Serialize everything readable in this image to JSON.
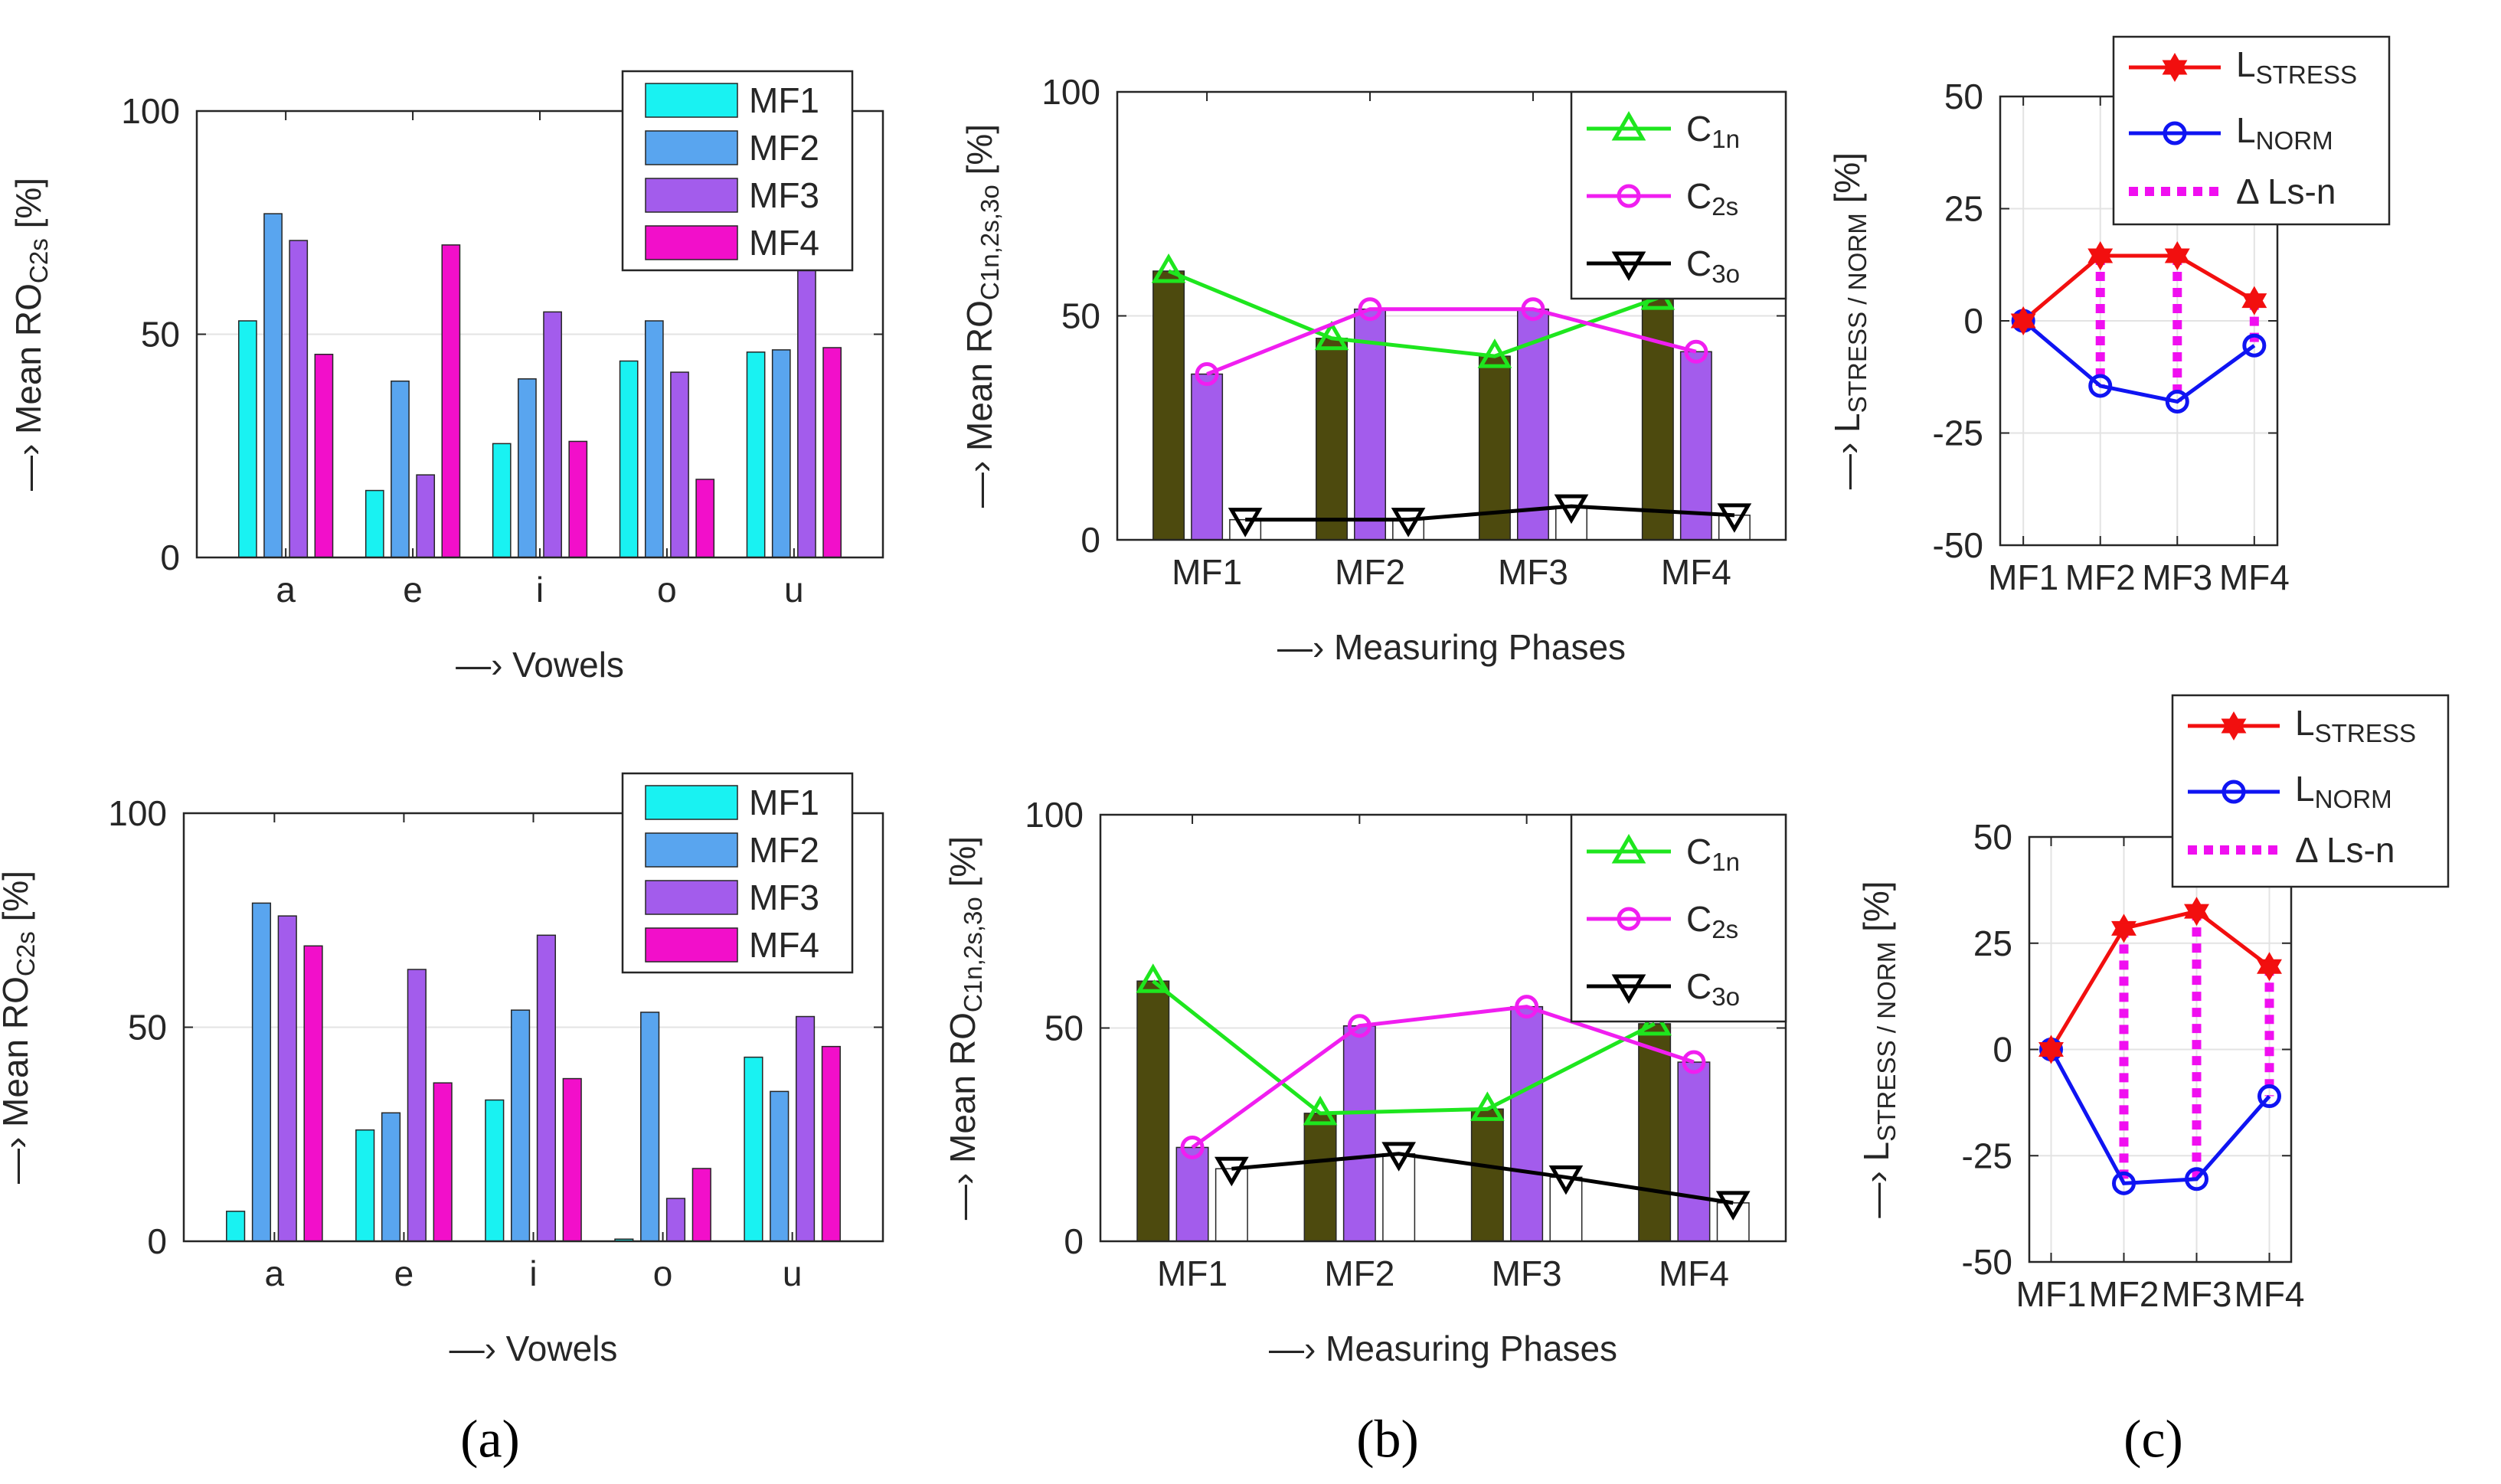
{
  "colors": {
    "mf1": "#19f2f2",
    "mf2": "#59a5ef",
    "mf3": "#a35cec",
    "mf4": "#f20fca",
    "c1n_bar": "#4d4a0e",
    "c1n_line": "#1ee61e",
    "c2s_bar": "#a35cec",
    "c2s_line": "#f01ef0",
    "c3o_bar": "#ffffff",
    "c3o_line": "#000000",
    "stress": "#f20f0f",
    "norm": "#0f14f2",
    "delta": "#f00ff0"
  },
  "captions": [
    "(a)",
    "(b)",
    "(c)"
  ],
  "chart_data": [
    {
      "id": "a-top",
      "type": "bar",
      "title": "",
      "xlabel": "—› Vowels",
      "ylabel_main": "—› Mean RO",
      "ylabel_sub": "C2s",
      "ylabel_unit": "[%]",
      "ylim": [
        0,
        100
      ],
      "yticks": [
        0,
        50,
        100
      ],
      "legend_position": "top-right",
      "categories": [
        "a",
        "e",
        "i",
        "o",
        "u"
      ],
      "series": [
        {
          "name": "MF1",
          "values": [
            53,
            15,
            25.5,
            44,
            46
          ]
        },
        {
          "name": "MF2",
          "values": [
            77,
            39.5,
            40,
            53,
            46.5
          ]
        },
        {
          "name": "MF3",
          "values": [
            71,
            18.5,
            55,
            41.5,
            70.5
          ]
        },
        {
          "name": "MF4",
          "values": [
            45.5,
            70,
            26,
            17.5,
            47
          ]
        }
      ]
    },
    {
      "id": "a-bottom",
      "type": "bar",
      "title": "",
      "xlabel": "—› Vowels",
      "ylabel_main": "—› Mean RO",
      "ylabel_sub": "C2s",
      "ylabel_unit": "[%]",
      "ylim": [
        0,
        100
      ],
      "yticks": [
        0,
        50,
        100
      ],
      "legend_position": "top-right",
      "categories": [
        "a",
        "e",
        "i",
        "o",
        "u"
      ],
      "series": [
        {
          "name": "MF1",
          "values": [
            7,
            26,
            33,
            0.5,
            43
          ]
        },
        {
          "name": "MF2",
          "values": [
            79,
            30,
            54,
            53.5,
            35
          ]
        },
        {
          "name": "MF3",
          "values": [
            76,
            63.5,
            71.5,
            10,
            52.5
          ]
        },
        {
          "name": "MF4",
          "values": [
            69,
            37,
            38,
            17,
            45.5
          ]
        }
      ]
    },
    {
      "id": "b-top",
      "type": "bar",
      "title": "",
      "xlabel": "—› Measuring Phases",
      "ylabel_main": "—› Mean RO",
      "ylabel_sub": "C1n,2s,3o",
      "ylabel_unit": "[%]",
      "ylim": [
        0,
        100
      ],
      "yticks": [
        0,
        50,
        100
      ],
      "legend_position": "top-right",
      "categories": [
        "MF1",
        "MF2",
        "MF3",
        "MF4"
      ],
      "series": [
        {
          "name": "C1n",
          "label_main": "C",
          "label_sub": "1n",
          "marker": "triangle-up",
          "values": [
            60,
            45,
            41,
            54
          ]
        },
        {
          "name": "C2s",
          "label_main": "C",
          "label_sub": "2s",
          "marker": "circle",
          "values": [
            37,
            51.5,
            51.5,
            42
          ]
        },
        {
          "name": "C3o",
          "label_main": "C",
          "label_sub": "3o",
          "marker": "triangle-down",
          "values": [
            4.5,
            4.5,
            7.5,
            5.5
          ]
        }
      ]
    },
    {
      "id": "b-bottom",
      "type": "bar",
      "title": "",
      "xlabel": "—› Measuring Phases",
      "ylabel_main": "—› Mean RO",
      "ylabel_sub": "C1n,2s,3o",
      "ylabel_unit": "[%]",
      "ylim": [
        0,
        100
      ],
      "yticks": [
        0,
        50,
        100
      ],
      "legend_position": "top-right",
      "categories": [
        "MF1",
        "MF2",
        "MF3",
        "MF4"
      ],
      "series": [
        {
          "name": "C1n",
          "label_main": "C",
          "label_sub": "1n",
          "marker": "triangle-up",
          "values": [
            61,
            30,
            31,
            51
          ]
        },
        {
          "name": "C2s",
          "label_main": "C",
          "label_sub": "2s",
          "marker": "circle",
          "values": [
            22,
            50.5,
            55,
            42
          ]
        },
        {
          "name": "C3o",
          "label_main": "C",
          "label_sub": "3o",
          "marker": "triangle-down",
          "values": [
            17,
            20.5,
            15,
            9
          ]
        }
      ]
    },
    {
      "id": "c-top",
      "type": "line",
      "title": "",
      "xlabel": "",
      "ylabel_main": "—› L",
      "ylabel_sub": "STRESS / NORM",
      "ylabel_unit": "[%]",
      "ylim": [
        -50,
        50
      ],
      "yticks": [
        -50,
        -25,
        0,
        25,
        50
      ],
      "legend_position": "top",
      "categories": [
        "MF1",
        "MF2",
        "MF3",
        "MF4"
      ],
      "series": [
        {
          "name": "LSTRESS",
          "label_main": "L",
          "label_sub": "STRESS",
          "marker": "hexagram",
          "values": [
            0,
            14.5,
            14.5,
            4.5
          ]
        },
        {
          "name": "LNORM",
          "label_main": "L",
          "label_sub": "NORM",
          "marker": "circle",
          "values": [
            0,
            -14.5,
            -18,
            -5.5
          ]
        }
      ],
      "delta_label": "Δ Ls-n"
    },
    {
      "id": "c-bottom",
      "type": "line",
      "title": "",
      "xlabel": "",
      "ylabel_main": "—› L",
      "ylabel_sub": "STRESS / NORM",
      "ylabel_unit": "[%]",
      "ylim": [
        -50,
        50
      ],
      "yticks": [
        -50,
        -25,
        0,
        25,
        50
      ],
      "legend_position": "top",
      "categories": [
        "MF1",
        "MF2",
        "MF3",
        "MF4"
      ],
      "series": [
        {
          "name": "LSTRESS",
          "label_main": "L",
          "label_sub": "STRESS",
          "marker": "hexagram",
          "values": [
            0,
            28.5,
            32.5,
            19.5
          ]
        },
        {
          "name": "LNORM",
          "label_main": "L",
          "label_sub": "NORM",
          "marker": "circle",
          "values": [
            0,
            -31.5,
            -30.5,
            -11
          ]
        }
      ],
      "delta_label": "Δ Ls-n"
    }
  ]
}
